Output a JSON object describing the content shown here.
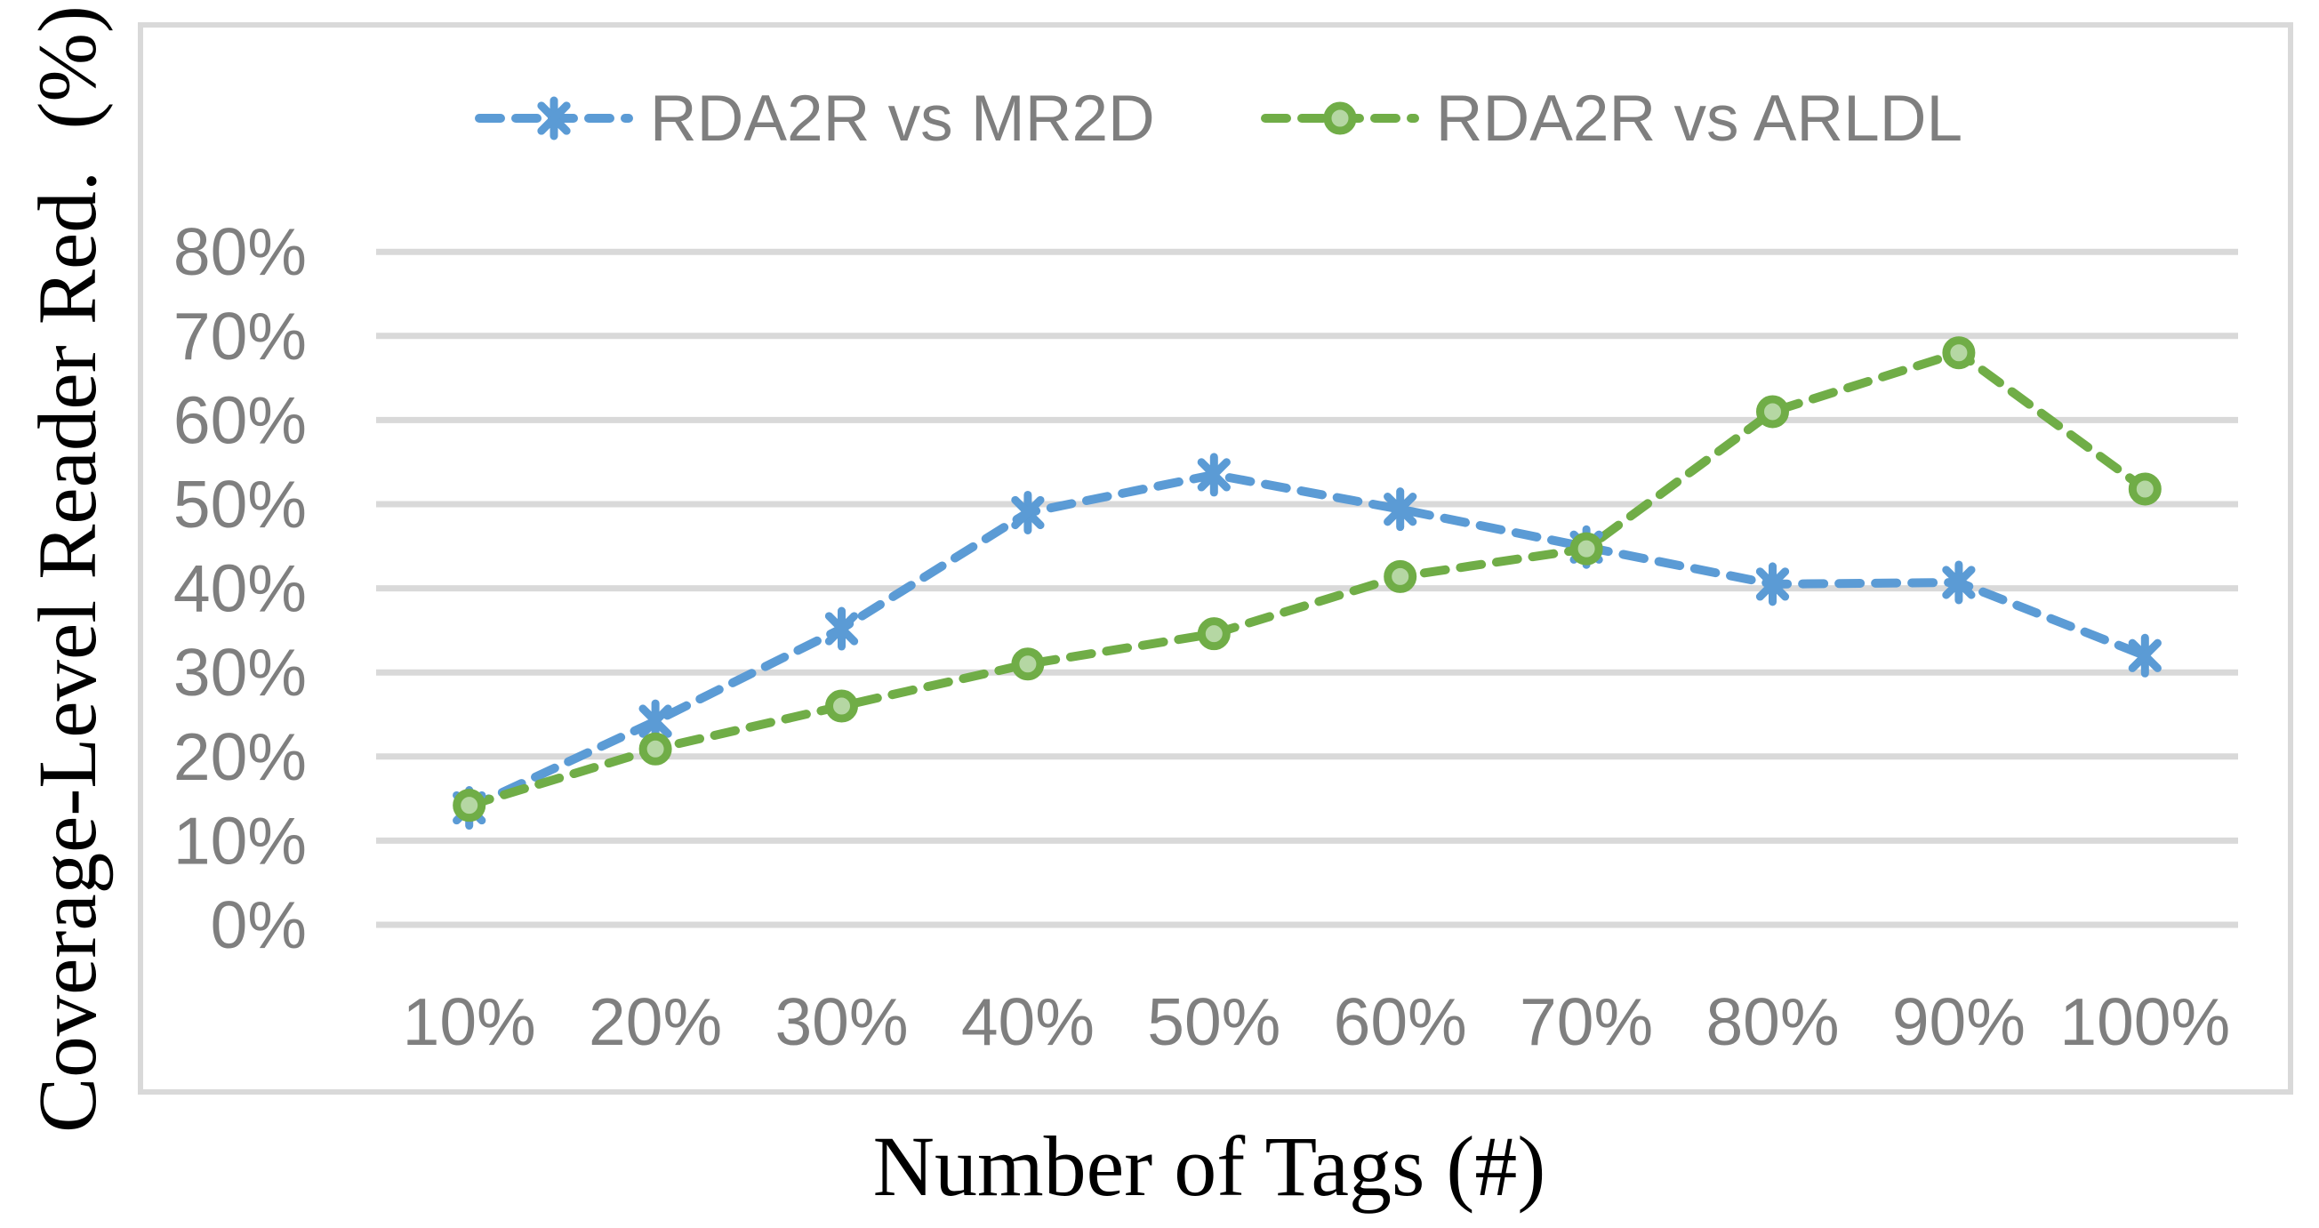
{
  "figure": {
    "y_axis_title": "Coverage-Level Reader Red.  (%)",
    "x_axis_title": "Number of Tags (#)"
  },
  "legend": {
    "position": "top-center",
    "items": [
      {
        "label": "RDA2R vs MR2D",
        "marker": "asterisk",
        "color": "#5B9BD5"
      },
      {
        "label": "RDA2R vs ARLDL",
        "marker": "circle",
        "color": "#70AD47"
      }
    ]
  },
  "chart_data": {
    "type": "line",
    "title": "",
    "xlabel": "Number of Tags (#)",
    "ylabel": "Coverage-Level Reader Red.  (%)",
    "categories": [
      "10%",
      "20%",
      "30%",
      "40%",
      "50%",
      "60%",
      "70%",
      "80%",
      "90%",
      "100%"
    ],
    "series": [
      {
        "name": "RDA2R vs MR2D",
        "color": "#5B9BD5",
        "marker": "asterisk",
        "line_style": "dashed",
        "values": [
          13.9,
          24.2,
          35.2,
          49.0,
          53.5,
          49.4,
          44.9,
          40.5,
          40.7,
          32.0
        ]
      },
      {
        "name": "RDA2R vs ARLDL",
        "color": "#70AD47",
        "marker": "circle",
        "marker_fill": "#B5D7A3",
        "line_style": "dashed",
        "values": [
          14.2,
          20.9,
          26.0,
          31.0,
          34.6,
          41.4,
          44.7,
          61.0,
          68.0,
          51.8
        ]
      }
    ],
    "y_ticks": [
      "0%",
      "10%",
      "20%",
      "30%",
      "40%",
      "50%",
      "60%",
      "70%",
      "80%"
    ],
    "ylim": [
      0,
      80
    ],
    "y_tick_step": 10,
    "grid": "horizontal",
    "gridline_color": "#D9D9D9",
    "tick_label_color": "#7F7F7F",
    "legend_position": "top"
  }
}
